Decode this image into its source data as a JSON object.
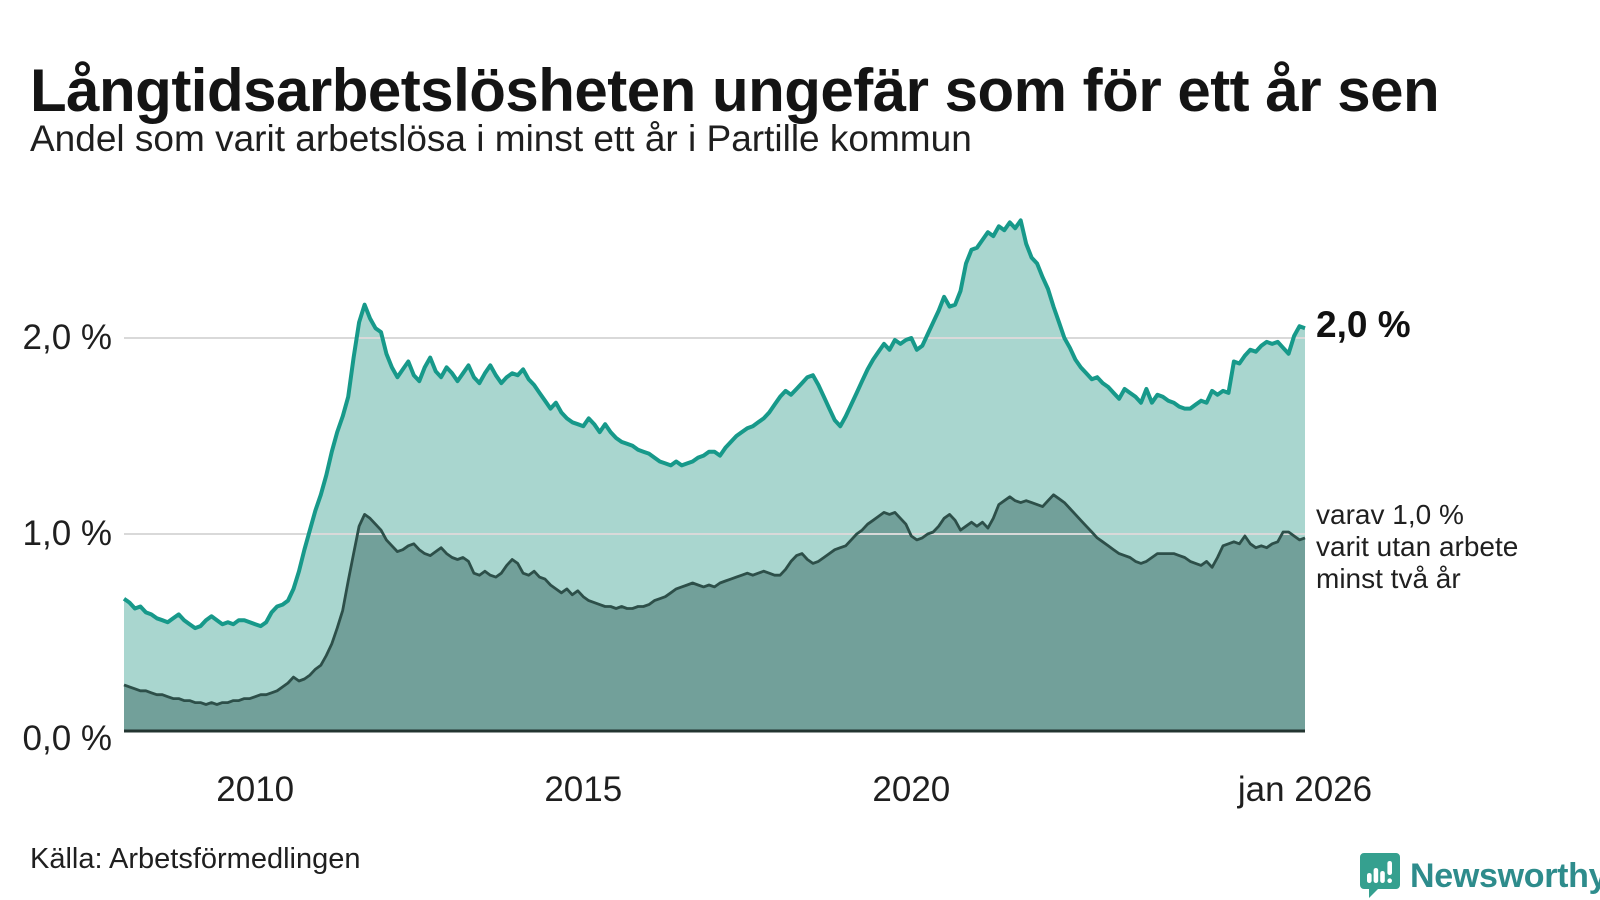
{
  "header": {
    "title": "Långtidsarbetslösheten ungefär som för ett år sen",
    "subtitle": "Andel som varit arbetslösa i minst ett år i Partille kommun"
  },
  "footer": {
    "source": "Källa: Arbetsförmedlingen",
    "brand": "Newsworthy"
  },
  "colors": {
    "series1_line": "#17998a",
    "series1_fill": "#a9d6cf",
    "series2_line": "#2d4f49",
    "series2_fill": "#72a09a",
    "gridline": "#d9d9d9",
    "baseline": "#233531",
    "brand_teal": "#35a08f",
    "brand_text": "#2e8c8c"
  },
  "chart_data": {
    "type": "area",
    "title": "Långtidsarbetslösheten ungefär som för ett år sen",
    "subtitle": "Andel som varit arbetslösa i minst ett år i Partille kommun",
    "unit": "%",
    "x_start_year": 2008,
    "x_end_year": 2026,
    "points_per_month": 1,
    "ylim": [
      0,
      2.75
    ],
    "grid": "horizontal",
    "legend_position": "right-edge-annotations",
    "y_ticks": [
      {
        "value": 0,
        "label": "0,0 %"
      },
      {
        "value": 1,
        "label": "1,0 %"
      },
      {
        "value": 2,
        "label": "2,0 %"
      }
    ],
    "x_ticks": [
      {
        "year": 2010,
        "label": "2010"
      },
      {
        "year": 2015,
        "label": "2015"
      },
      {
        "year": 2020,
        "label": "2020"
      },
      {
        "year": 2026,
        "label": "jan 2026"
      }
    ],
    "end_labels": {
      "total": "2,0 %",
      "subset_lines": [
        "varav 1,0 %",
        "varit utan arbete",
        "minst två år"
      ]
    },
    "series": [
      {
        "id": "minst-ett-ar",
        "end_value": 2.0,
        "line_color": "#17998a",
        "fill_color": "#a9d6cf",
        "values": [
          0.67,
          0.65,
          0.62,
          0.63,
          0.6,
          0.59,
          0.57,
          0.56,
          0.55,
          0.57,
          0.59,
          0.56,
          0.54,
          0.52,
          0.53,
          0.56,
          0.58,
          0.56,
          0.54,
          0.55,
          0.54,
          0.56,
          0.56,
          0.55,
          0.54,
          0.53,
          0.55,
          0.6,
          0.63,
          0.64,
          0.66,
          0.72,
          0.81,
          0.92,
          1.02,
          1.12,
          1.2,
          1.3,
          1.42,
          1.52,
          1.6,
          1.7,
          1.9,
          2.08,
          2.17,
          2.1,
          2.05,
          2.03,
          1.92,
          1.85,
          1.8,
          1.84,
          1.88,
          1.81,
          1.78,
          1.85,
          1.9,
          1.83,
          1.8,
          1.85,
          1.82,
          1.78,
          1.82,
          1.86,
          1.8,
          1.77,
          1.82,
          1.86,
          1.81,
          1.77,
          1.8,
          1.82,
          1.81,
          1.84,
          1.79,
          1.76,
          1.72,
          1.68,
          1.64,
          1.67,
          1.62,
          1.59,
          1.57,
          1.56,
          1.55,
          1.59,
          1.56,
          1.52,
          1.56,
          1.52,
          1.49,
          1.47,
          1.46,
          1.45,
          1.43,
          1.42,
          1.41,
          1.39,
          1.37,
          1.36,
          1.35,
          1.37,
          1.35,
          1.36,
          1.37,
          1.39,
          1.4,
          1.42,
          1.42,
          1.4,
          1.44,
          1.47,
          1.5,
          1.52,
          1.54,
          1.55,
          1.57,
          1.59,
          1.62,
          1.66,
          1.7,
          1.73,
          1.71,
          1.74,
          1.77,
          1.8,
          1.81,
          1.76,
          1.7,
          1.64,
          1.58,
          1.55,
          1.6,
          1.66,
          1.72,
          1.78,
          1.84,
          1.89,
          1.93,
          1.97,
          1.94,
          1.99,
          1.97,
          1.99,
          2.0,
          1.94,
          1.96,
          2.02,
          2.08,
          2.14,
          2.21,
          2.16,
          2.17,
          2.24,
          2.38,
          2.45,
          2.46,
          2.5,
          2.54,
          2.52,
          2.57,
          2.55,
          2.59,
          2.56,
          2.6,
          2.48,
          2.41,
          2.38,
          2.31,
          2.25,
          2.16,
          2.08,
          2.0,
          1.95,
          1.89,
          1.85,
          1.82,
          1.79,
          1.8,
          1.77,
          1.75,
          1.72,
          1.69,
          1.74,
          1.72,
          1.7,
          1.67,
          1.74,
          1.67,
          1.71,
          1.7,
          1.68,
          1.67,
          1.65,
          1.64,
          1.64,
          1.66,
          1.68,
          1.67,
          1.73,
          1.71,
          1.73,
          1.72,
          1.88,
          1.87,
          1.91,
          1.94,
          1.93,
          1.96,
          1.98,
          1.97,
          1.98,
          1.95,
          1.92,
          2.01,
          2.06,
          2.05
        ]
      },
      {
        "id": "minst-tva-ar",
        "end_value": 1.0,
        "line_color": "#2d4f49",
        "fill_color": "#72a09a",
        "values": [
          0.23,
          0.22,
          0.21,
          0.2,
          0.2,
          0.19,
          0.18,
          0.18,
          0.17,
          0.16,
          0.16,
          0.15,
          0.15,
          0.14,
          0.14,
          0.13,
          0.14,
          0.13,
          0.14,
          0.14,
          0.15,
          0.15,
          0.16,
          0.16,
          0.17,
          0.18,
          0.18,
          0.19,
          0.2,
          0.22,
          0.24,
          0.27,
          0.25,
          0.26,
          0.28,
          0.31,
          0.33,
          0.38,
          0.44,
          0.52,
          0.61,
          0.76,
          0.9,
          1.04,
          1.1,
          1.08,
          1.05,
          1.02,
          0.97,
          0.94,
          0.91,
          0.92,
          0.94,
          0.95,
          0.92,
          0.9,
          0.89,
          0.91,
          0.93,
          0.9,
          0.88,
          0.87,
          0.88,
          0.86,
          0.8,
          0.79,
          0.81,
          0.79,
          0.78,
          0.8,
          0.84,
          0.87,
          0.85,
          0.8,
          0.79,
          0.81,
          0.78,
          0.77,
          0.74,
          0.72,
          0.7,
          0.72,
          0.69,
          0.71,
          0.68,
          0.66,
          0.65,
          0.64,
          0.63,
          0.63,
          0.62,
          0.63,
          0.62,
          0.62,
          0.63,
          0.63,
          0.64,
          0.66,
          0.67,
          0.68,
          0.7,
          0.72,
          0.73,
          0.74,
          0.75,
          0.74,
          0.73,
          0.74,
          0.73,
          0.75,
          0.76,
          0.77,
          0.78,
          0.79,
          0.8,
          0.79,
          0.8,
          0.81,
          0.8,
          0.79,
          0.79,
          0.82,
          0.86,
          0.89,
          0.9,
          0.87,
          0.85,
          0.86,
          0.88,
          0.9,
          0.92,
          0.93,
          0.94,
          0.97,
          1.0,
          1.02,
          1.05,
          1.07,
          1.09,
          1.11,
          1.1,
          1.11,
          1.08,
          1.05,
          0.99,
          0.97,
          0.98,
          1.0,
          1.01,
          1.04,
          1.08,
          1.1,
          1.07,
          1.02,
          1.04,
          1.06,
          1.04,
          1.06,
          1.03,
          1.08,
          1.15,
          1.17,
          1.19,
          1.17,
          1.16,
          1.17,
          1.16,
          1.15,
          1.14,
          1.17,
          1.2,
          1.18,
          1.16,
          1.13,
          1.1,
          1.07,
          1.04,
          1.01,
          0.98,
          0.96,
          0.94,
          0.92,
          0.9,
          0.89,
          0.88,
          0.86,
          0.85,
          0.86,
          0.88,
          0.9,
          0.9,
          0.9,
          0.9,
          0.89,
          0.88,
          0.86,
          0.85,
          0.84,
          0.86,
          0.83,
          0.88,
          0.94,
          0.95,
          0.96,
          0.95,
          0.99,
          0.95,
          0.93,
          0.94,
          0.93,
          0.95,
          0.96,
          1.01,
          1.01,
          0.99,
          0.97,
          0.98
        ]
      }
    ]
  }
}
